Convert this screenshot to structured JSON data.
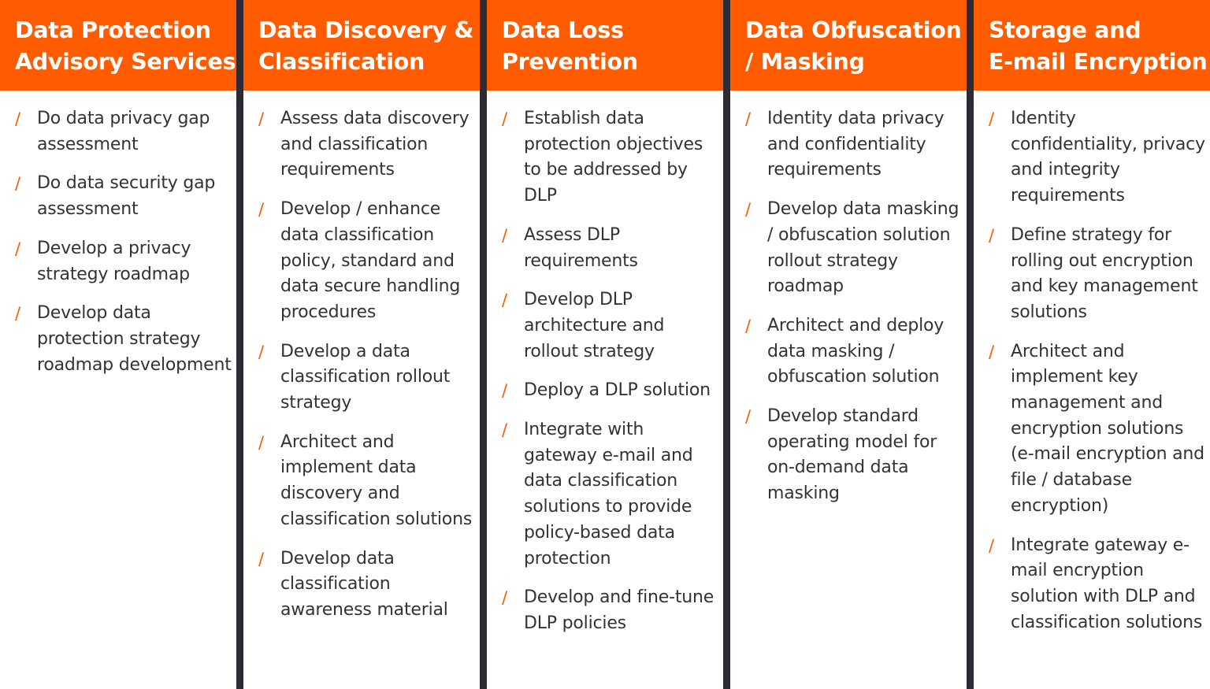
{
  "accent_color": "#ff5b00",
  "divider_color": "#2e2a33",
  "bullet_icon": "slash",
  "columns": [
    {
      "title_lines": [
        "Data Protection",
        "Advisory Services"
      ],
      "items": [
        "Do data privacy gap assessment",
        "Do data security gap assessment",
        "Develop a privacy strategy roadmap",
        "Develop data protection strategy roadmap development"
      ]
    },
    {
      "title_lines": [
        "Data Discovery &",
        "Classification"
      ],
      "items": [
        "Assess data discovery and classification requirements",
        "Develop / enhance data classification policy, standard and data secure handling procedures",
        "Develop a data classification rollout strategy",
        "Architect and implement data discovery and classification solutions",
        "Develop data classification awareness material"
      ]
    },
    {
      "title_lines": [
        "Data Loss",
        "Prevention"
      ],
      "items": [
        "Establish data protection objectives to be addressed by DLP",
        "Assess DLP requirements",
        "Develop DLP architecture and rollout strategy",
        "Deploy a DLP solution",
        "Integrate with gateway e-mail and data classification solutions to provide policy-based data protection",
        "Develop and fine-tune DLP policies"
      ]
    },
    {
      "title_lines": [
        "Data Obfuscation",
        "/ Masking"
      ],
      "items": [
        "Identity data privacy and confidentiality requirements",
        "Develop data masking / obfuscation solution rollout strategy roadmap",
        "Architect and deploy data masking / obfuscation solution",
        "Develop standard operating model for on-demand data masking"
      ]
    },
    {
      "title_lines": [
        "Storage and",
        "E-mail Encryption"
      ],
      "items": [
        "Identity confidentiality, privacy and integrity requirements",
        "Define strategy for rolling out encryption and key management solutions",
        "Architect and implement key management and encryption solutions (e-mail encryption and file / database encryption)",
        "Integrate gateway e-mail encryption solution with DLP and classification solutions"
      ]
    }
  ]
}
